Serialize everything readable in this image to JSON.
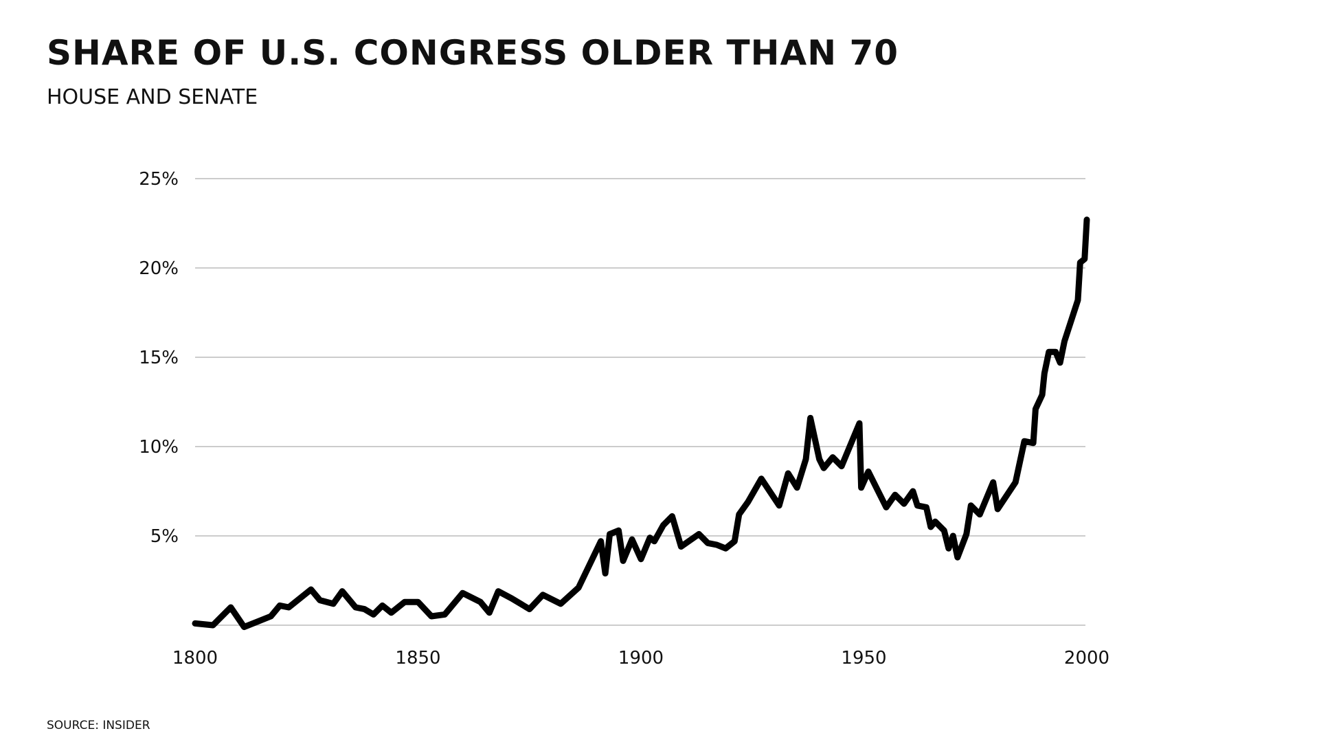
{
  "chart_data": {
    "type": "line",
    "title": "Share of U.S. Congress older than 70",
    "subtitle": "House and Senate",
    "source": "Source: Insider",
    "xlabel": "",
    "ylabel": "",
    "xlim": [
      1800,
      2000
    ],
    "ylim": [
      0,
      25
    ],
    "x_ticks": [
      {
        "value": 1800,
        "label": "1800"
      },
      {
        "value": 1850,
        "label": "1850"
      },
      {
        "value": 1900,
        "label": "1900"
      },
      {
        "value": 1950,
        "label": "1950"
      },
      {
        "value": 2000,
        "label": "2000"
      }
    ],
    "y_ticks": [
      {
        "value": 5,
        "label": "5%"
      },
      {
        "value": 10,
        "label": "10%"
      },
      {
        "value": 15,
        "label": "15%"
      },
      {
        "value": 20,
        "label": "20%"
      },
      {
        "value": 25,
        "label": "25%"
      }
    ],
    "grid": true,
    "legend": "none",
    "line_color": "#000000",
    "grid_color": "#cccccc",
    "series": [
      {
        "points": [
          [
            1800,
            0.1
          ],
          [
            1804,
            0.0
          ],
          [
            1808,
            1.0
          ],
          [
            1811,
            -0.1
          ],
          [
            1817,
            0.5
          ],
          [
            1819,
            1.1
          ],
          [
            1821,
            1.0
          ],
          [
            1826,
            2.0
          ],
          [
            1828,
            1.4
          ],
          [
            1831,
            1.2
          ],
          [
            1833,
            1.9
          ],
          [
            1836,
            1.0
          ],
          [
            1838,
            0.9
          ],
          [
            1840,
            0.6
          ],
          [
            1842,
            1.1
          ],
          [
            1844,
            0.7
          ],
          [
            1847,
            1.3
          ],
          [
            1850,
            1.3
          ],
          [
            1853,
            0.5
          ],
          [
            1856,
            0.6
          ],
          [
            1860,
            1.8
          ],
          [
            1864,
            1.3
          ],
          [
            1866,
            0.7
          ],
          [
            1868,
            1.9
          ],
          [
            1871,
            1.5
          ],
          [
            1875,
            0.9
          ],
          [
            1878,
            1.7
          ],
          [
            1882,
            1.2
          ],
          [
            1886,
            2.1
          ],
          [
            1891,
            4.7
          ],
          [
            1892,
            2.9
          ],
          [
            1893,
            5.1
          ],
          [
            1895,
            5.3
          ],
          [
            1896,
            3.6
          ],
          [
            1898,
            4.8
          ],
          [
            1900,
            3.7
          ],
          [
            1902,
            4.9
          ],
          [
            1903,
            4.7
          ],
          [
            1905,
            5.6
          ],
          [
            1907,
            6.1
          ],
          [
            1909,
            4.4
          ],
          [
            1913,
            5.1
          ],
          [
            1915,
            4.6
          ],
          [
            1917,
            4.5
          ],
          [
            1919,
            4.3
          ],
          [
            1921,
            4.7
          ],
          [
            1922,
            6.2
          ],
          [
            1924,
            6.9
          ],
          [
            1927,
            8.2
          ],
          [
            1931,
            6.7
          ],
          [
            1933,
            8.5
          ],
          [
            1935,
            7.7
          ],
          [
            1937,
            9.3
          ],
          [
            1938,
            11.6
          ],
          [
            1940,
            9.3
          ],
          [
            1941,
            8.8
          ],
          [
            1943,
            9.4
          ],
          [
            1945,
            8.9
          ],
          [
            1949,
            11.3
          ],
          [
            1949.4,
            7.7
          ],
          [
            1951,
            8.6
          ],
          [
            1955,
            6.6
          ],
          [
            1957,
            7.3
          ],
          [
            1959,
            6.8
          ],
          [
            1961,
            7.5
          ],
          [
            1962,
            6.7
          ],
          [
            1964,
            6.6
          ],
          [
            1965,
            5.5
          ],
          [
            1966,
            5.8
          ],
          [
            1968,
            5.3
          ],
          [
            1969,
            4.3
          ],
          [
            1970,
            5.0
          ],
          [
            1971,
            3.8
          ],
          [
            1973,
            5.1
          ],
          [
            1974,
            6.7
          ],
          [
            1976,
            6.2
          ],
          [
            1979,
            8.0
          ],
          [
            1980,
            6.5
          ],
          [
            1984,
            8.0
          ],
          [
            1986,
            10.3
          ],
          [
            1988,
            10.2
          ],
          [
            1988.5,
            12.1
          ],
          [
            1990,
            12.9
          ],
          [
            1990.5,
            14.1
          ],
          [
            1991.5,
            15.3
          ],
          [
            1993,
            15.3
          ],
          [
            1994,
            14.7
          ],
          [
            1995,
            15.9
          ],
          [
            1998,
            18.2
          ],
          [
            1998.5,
            20.3
          ],
          [
            1999.5,
            20.5
          ],
          [
            2000,
            22.7
          ]
        ]
      }
    ]
  }
}
